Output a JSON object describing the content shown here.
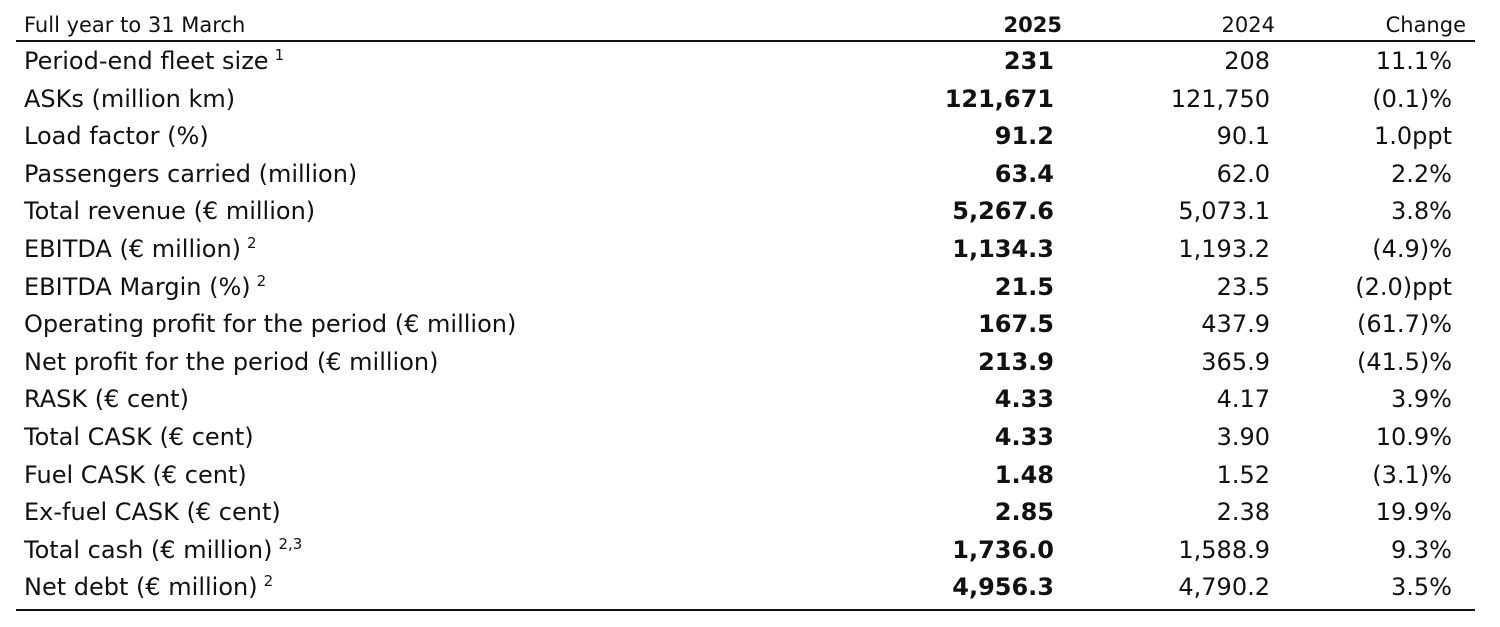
{
  "header": {
    "label": "Full year to 31 March",
    "year_current": "2025",
    "year_prior": "2024",
    "change": "Change"
  },
  "rows": [
    {
      "label": "Period-end fleet size",
      "note": "1",
      "v2025": "231",
      "v2024": "208",
      "change": "11.1%"
    },
    {
      "label": "ASKs (million km)",
      "note": "",
      "v2025": "121,671",
      "v2024": "121,750",
      "change": "(0.1)%"
    },
    {
      "label": "Load factor (%)",
      "note": "",
      "v2025": "91.2",
      "v2024": "90.1",
      "change": "1.0ppt"
    },
    {
      "label": "Passengers carried (million)",
      "note": "",
      "v2025": "63.4",
      "v2024": "62.0",
      "change": "2.2%"
    },
    {
      "label": "Total revenue (€ million)",
      "note": "",
      "v2025": "5,267.6",
      "v2024": "5,073.1",
      "change": "3.8%"
    },
    {
      "label": "EBITDA (€ million)",
      "note": "2",
      "v2025": "1,134.3",
      "v2024": "1,193.2",
      "change": "(4.9)%"
    },
    {
      "label": "EBITDA Margin (%)",
      "note": "2",
      "v2025": "21.5",
      "v2024": "23.5",
      "change": "(2.0)ppt"
    },
    {
      "label": "Operating profit for the period (€ million)",
      "note": "",
      "v2025": "167.5",
      "v2024": "437.9",
      "change": "(61.7)%"
    },
    {
      "label": "Net profit for the period (€ million)",
      "note": "",
      "v2025": "213.9",
      "v2024": "365.9",
      "change": "(41.5)%"
    },
    {
      "label": "RASK (€ cent)",
      "note": "",
      "v2025": "4.33",
      "v2024": "4.17",
      "change": "3.9%"
    },
    {
      "label": "Total CASK (€ cent)",
      "note": "",
      "v2025": "4.33",
      "v2024": "3.90",
      "change": "10.9%"
    },
    {
      "label": "Fuel CASK (€ cent)",
      "note": "",
      "v2025": "1.48",
      "v2024": "1.52",
      "change": "(3.1)%"
    },
    {
      "label": "Ex-fuel CASK (€ cent)",
      "note": "",
      "v2025": "2.85",
      "v2024": "2.38",
      "change": "19.9%"
    },
    {
      "label": "Total cash (€ million)",
      "note": "2,3",
      "v2025": "1,736.0",
      "v2024": "1,588.9",
      "change": "9.3%"
    },
    {
      "label": "Net debt (€ million)",
      "note": "2",
      "v2025": "4,956.3",
      "v2024": "4,790.2",
      "change": "3.5%"
    }
  ]
}
